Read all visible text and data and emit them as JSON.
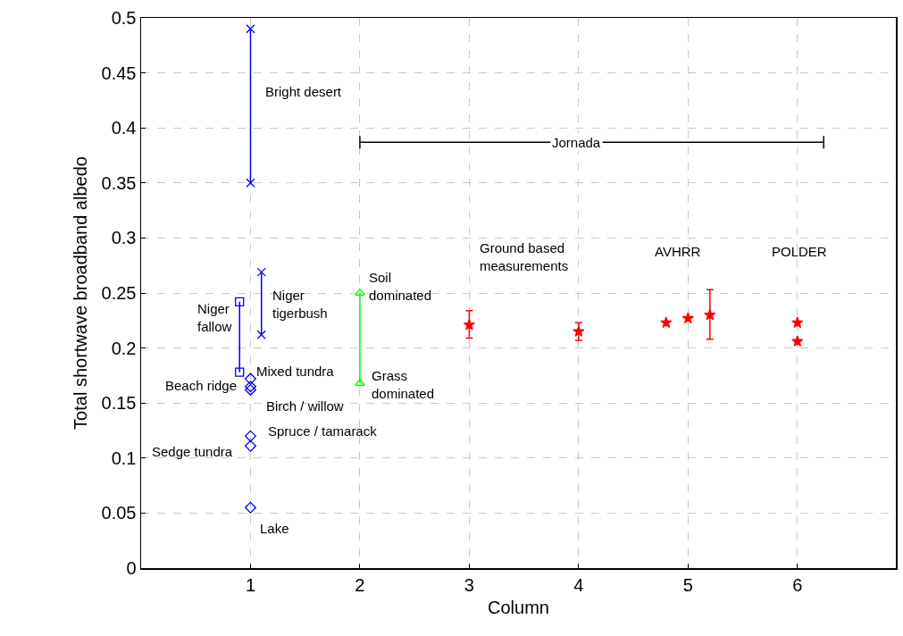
{
  "chart_data": {
    "type": "scatter",
    "xlabel": "Column",
    "ylabel": "Total shortwave broadband albedo",
    "xlim": [
      0,
      6.9
    ],
    "xticks": [
      1,
      2,
      3,
      4,
      5,
      6
    ],
    "ylim": [
      0,
      0.5
    ],
    "yticks": [
      0,
      0.05,
      0.1,
      0.15,
      0.2,
      0.25,
      0.3,
      0.35,
      0.4,
      0.45,
      0.5
    ],
    "grid": true,
    "series": [
      {
        "type": "line",
        "color": "#0000ff",
        "marker": "cross",
        "x": [
          1,
          1
        ],
        "values": [
          0.49,
          0.35
        ]
      },
      {
        "type": "line",
        "color": "#0000ff",
        "marker": "cross",
        "x": [
          1.1,
          1.1
        ],
        "values": [
          0.269,
          0.212
        ]
      },
      {
        "type": "line",
        "color": "#0000ff",
        "marker": "square",
        "x": [
          0.9,
          0.9
        ],
        "values": [
          0.242,
          0.178
        ]
      },
      {
        "type": "line",
        "color": "#00ff00",
        "marker": "triangle",
        "x": [
          2,
          2
        ],
        "values": [
          0.25,
          0.168
        ]
      },
      {
        "color": "#0000ff",
        "marker": "diamond",
        "x": [
          1,
          1,
          1,
          1,
          1,
          1
        ],
        "values": [
          0.172,
          0.165,
          0.162,
          0.12,
          0.111,
          0.055
        ]
      },
      {
        "color": "#ff0000",
        "marker": "star",
        "x": [
          3,
          4,
          4.8,
          5,
          5.2,
          6,
          6
        ],
        "values": [
          0.221,
          0.215,
          0.223,
          0.227,
          0.23,
          0.223,
          0.206
        ],
        "errors": [
          [
            0.209,
            0.234
          ],
          [
            0.207,
            0.223
          ],
          null,
          null,
          [
            0.208,
            0.253
          ],
          null,
          null
        ]
      },
      {
        "type": "line",
        "color": "#000000",
        "marker": "none",
        "x": [
          2,
          6.24
        ],
        "values": [
          0.387,
          0.387
        ]
      }
    ],
    "annotations": [
      "Bright desert",
      "Niger\ntigerbush",
      "Niger\nfallow",
      "Soil\ndominated",
      "Grass\ndominated",
      "Mixed tundra",
      "Beach ridge",
      "Birch / willow",
      "Spruce / tamarack",
      "Sedge tundra",
      "Lake",
      "Ground based\nmeasurements",
      "AVHRR",
      "POLDER",
      {
        "text": "Jornada",
        "x": 3.98,
        "y": 0.387
      }
    ]
  }
}
